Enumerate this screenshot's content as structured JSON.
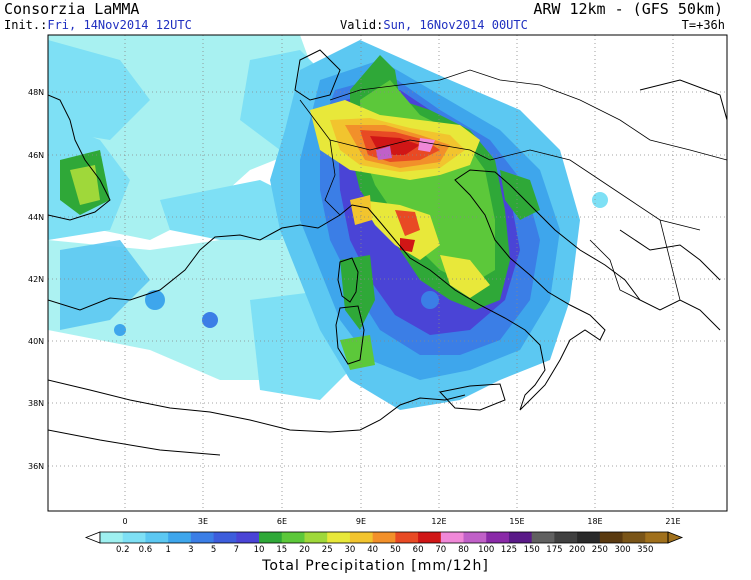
{
  "header": {
    "org": "Consorzia LaMMA",
    "model": "ARW 12km - (GFS 50km)",
    "init_label": "Init.:",
    "init_value": "Fri, 14Nov2014 12UTC",
    "valid_label": "Valid:",
    "valid_value": "Sun, 16Nov2014 00UTC",
    "forecast_step": "T=+36h"
  },
  "map": {
    "lat_labels": [
      "48N",
      "46N",
      "44N",
      "42N",
      "40N",
      "38N",
      "36N"
    ],
    "lon_labels": [
      "0",
      "3E",
      "6E",
      "9E",
      "12E",
      "15E",
      "18E",
      "21E"
    ],
    "extent": {
      "lon_min": -3,
      "lon_max": 22,
      "lat_min": 34.8,
      "lat_max": 49.5
    }
  },
  "colorbar": {
    "title": "Total Precipitation [mm/12h]",
    "levels": [
      "0.2",
      "0.6",
      "1",
      "3",
      "5",
      "7",
      "10",
      "15",
      "20",
      "25",
      "30",
      "40",
      "50",
      "60",
      "70",
      "80",
      "100",
      "125",
      "150",
      "175",
      "200",
      "250",
      "300",
      "350"
    ],
    "colors": [
      "#9ef0f0",
      "#7ee0f5",
      "#5cc8f2",
      "#3ea6ec",
      "#3b7ee6",
      "#3d5ddc",
      "#4a44d6",
      "#2fa838",
      "#5cc83a",
      "#9fd83a",
      "#e8e83a",
      "#f2c42e",
      "#f2902a",
      "#e84a24",
      "#d01616",
      "#f088d8",
      "#c060c8",
      "#8a2aa8",
      "#5a1a88",
      "#606060",
      "#404040",
      "#2a2a2a",
      "#5a3a10",
      "#7a5518",
      "#a0701c"
    ],
    "colors_note": "bins from <0.2 up to >350"
  }
}
